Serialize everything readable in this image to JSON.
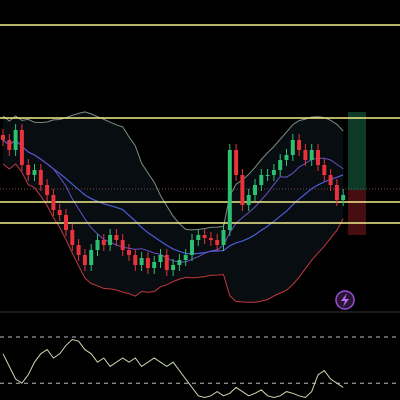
{
  "chart_data": {
    "type": "candlestick",
    "ylim": [
      0,
      310
    ],
    "up_color": "#2fbf71",
    "down_color": "#e8323c",
    "open": [
      175,
      170,
      160,
      180,
      145,
      135,
      140,
      125,
      115,
      100,
      95,
      80,
      65,
      55,
      45,
      60,
      70,
      65,
      75,
      70,
      60,
      55,
      45,
      52,
      42,
      48,
      55,
      40,
      45,
      50,
      55,
      70,
      75,
      72,
      70,
      65,
      80,
      160,
      135,
      105,
      115,
      125,
      135,
      135,
      140,
      150,
      155,
      170,
      160,
      150,
      160,
      145,
      135,
      125,
      110
    ],
    "high": [
      181,
      176,
      186,
      186,
      151,
      146,
      146,
      131,
      121,
      106,
      101,
      86,
      71,
      61,
      66,
      76,
      76,
      81,
      81,
      76,
      66,
      61,
      58,
      58,
      54,
      61,
      61,
      51,
      56,
      61,
      76,
      81,
      81,
      78,
      76,
      86,
      166,
      166,
      141,
      121,
      131,
      141,
      141,
      146,
      156,
      161,
      176,
      176,
      166,
      166,
      166,
      151,
      141,
      131,
      121
    ],
    "low": [
      164,
      154,
      154,
      139,
      129,
      129,
      119,
      109,
      94,
      89,
      74,
      59,
      49,
      39,
      39,
      54,
      59,
      59,
      64,
      54,
      49,
      39,
      39,
      36,
      36,
      42,
      34,
      34,
      39,
      44,
      49,
      64,
      66,
      64,
      59,
      59,
      74,
      129,
      99,
      99,
      109,
      119,
      129,
      129,
      134,
      144,
      149,
      154,
      144,
      144,
      139,
      129,
      119,
      104,
      104
    ],
    "close": [
      170,
      160,
      180,
      145,
      135,
      140,
      125,
      115,
      100,
      95,
      80,
      65,
      55,
      45,
      60,
      70,
      65,
      75,
      70,
      60,
      55,
      45,
      52,
      42,
      48,
      55,
      40,
      45,
      50,
      55,
      70,
      75,
      72,
      70,
      65,
      80,
      160,
      135,
      105,
      115,
      125,
      135,
      135,
      140,
      150,
      155,
      170,
      160,
      150,
      160,
      145,
      135,
      125,
      110,
      115
    ],
    "levels": [
      285,
      192,
      108,
      87
    ],
    "level_color": "#f3ee8e",
    "last_price_line": 121,
    "oscillator": {
      "ylim": [
        0,
        100
      ],
      "levels": [
        75,
        20
      ],
      "color": "#c8d9b0",
      "values": [
        55,
        40,
        25,
        20,
        30,
        45,
        55,
        60,
        50,
        55,
        65,
        72,
        70,
        60,
        55,
        45,
        50,
        40,
        45,
        50,
        45,
        50,
        40,
        45,
        50,
        45,
        40,
        45,
        35,
        25,
        15,
        5,
        3,
        5,
        10,
        5,
        8,
        15,
        10,
        5,
        8,
        12,
        5,
        3,
        5,
        10,
        8,
        5,
        3,
        10,
        30,
        35,
        25,
        20,
        15
      ]
    }
  }
}
